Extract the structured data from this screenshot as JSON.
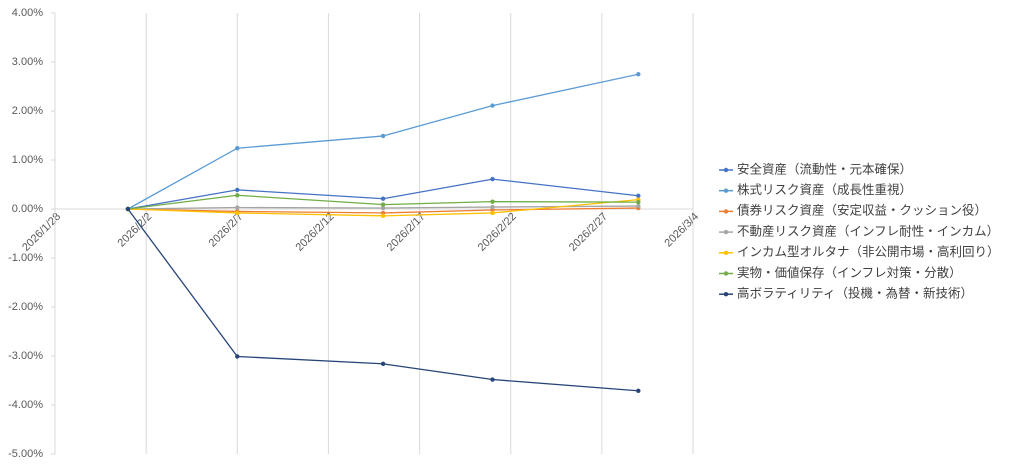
{
  "chart_data": {
    "type": "line",
    "x": [
      "2026/2/1",
      "2026/2/7",
      "2026/2/15",
      "2026/2/21",
      "2026/3/1"
    ],
    "xlim": [
      "2026/1/28",
      "2026/3/4"
    ],
    "xticks": [
      "2026/1/28",
      "2026/2/2",
      "2026/2/7",
      "2026/2/12",
      "2026/2/17",
      "2026/2/22",
      "2026/2/27",
      "2026/3/4"
    ],
    "ylim": [
      -5,
      4
    ],
    "yticks": [
      {
        "value": -5,
        "label": "-5.00%"
      },
      {
        "value": -4,
        "label": "-4.00%"
      },
      {
        "value": -3,
        "label": "-3.00%"
      },
      {
        "value": -2,
        "label": "-2.00%"
      },
      {
        "value": -1,
        "label": "-1.00%"
      },
      {
        "value": 0,
        "label": "0.00%"
      },
      {
        "value": 1,
        "label": "1.00%"
      },
      {
        "value": 2,
        "label": "2.00%"
      },
      {
        "value": 3,
        "label": "3.00%"
      },
      {
        "value": 4,
        "label": "4.00%"
      }
    ],
    "grid": "x",
    "legend": "right",
    "series": [
      {
        "name": "安全資産（流動性・元本確保）",
        "color": "#4472c4",
        "values": [
          0,
          0.39,
          0.21,
          0.61,
          0.27
        ]
      },
      {
        "name": "株式リスク資産（成長性重視）",
        "color": "#5b9bd5",
        "values": [
          0,
          1.24,
          1.49,
          2.11,
          2.75
        ]
      },
      {
        "name": "債券リスク資産（安定収益・クッション役）",
        "color": "#ed7d31",
        "values": [
          0,
          -0.05,
          -0.08,
          -0.02,
          0.02
        ]
      },
      {
        "name": "不動産リスク資産（インフレ耐性・インカム）",
        "color": "#a5a5a5",
        "values": [
          0,
          0.03,
          0.02,
          0.04,
          0.06
        ]
      },
      {
        "name": "インカム型オルタナ（非公開市場・高利回り）",
        "color": "#ffc000",
        "values": [
          0,
          -0.08,
          -0.14,
          -0.08,
          0.19
        ]
      },
      {
        "name": "実物・価値保存（インフレ対策・分散）",
        "color": "#70ad47",
        "values": [
          0,
          0.28,
          0.09,
          0.15,
          0.14
        ]
      },
      {
        "name": "高ボラティリティ（投機・為替・新技術）",
        "color": "#264478",
        "values": [
          0,
          -3.01,
          -3.16,
          -3.48,
          -3.71
        ]
      }
    ]
  }
}
